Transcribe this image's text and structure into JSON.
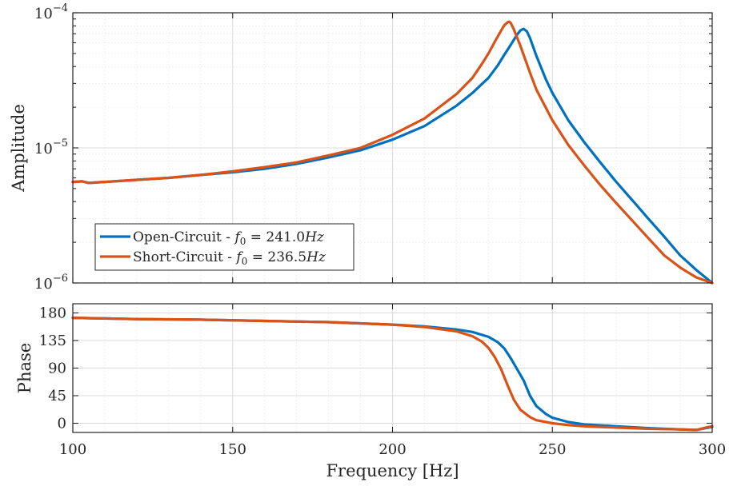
{
  "chart_data": [
    {
      "type": "line",
      "yscale": "log",
      "xlim": [
        100,
        300
      ],
      "ylim": [
        1e-06,
        0.0001
      ],
      "grid": true,
      "ylabel": "Amplitude",
      "xlabel": "",
      "y_ticks": [
        {
          "value": 1e-06,
          "mantissa": "10",
          "exp": "−6"
        },
        {
          "value": 1e-05,
          "mantissa": "10",
          "exp": "−5"
        },
        {
          "value": 0.0001,
          "mantissa": "10",
          "exp": "−4"
        }
      ],
      "legend_position": "lower-left",
      "legend": [
        {
          "prefix": "Open-Circuit - ",
          "var": "f",
          "sub": "0",
          "value": " = 241.0",
          "unit": "Hz",
          "color": "#0072BD"
        },
        {
          "prefix": "Short-Circuit - ",
          "var": "f",
          "sub": "0",
          "value": " = 236.5",
          "unit": "Hz",
          "color": "#D95319"
        }
      ],
      "series": [
        {
          "name": "Open-Circuit - f0 = 241.0Hz",
          "color": "#0072BD",
          "x": [
            100,
            103,
            105,
            110,
            120,
            130,
            140,
            150,
            160,
            170,
            180,
            190,
            200,
            210,
            220,
            225,
            230,
            233,
            235,
            237,
            239,
            240,
            241,
            242,
            243,
            245,
            248,
            250,
            255,
            260,
            265,
            270,
            275,
            280,
            285,
            290,
            295,
            300
          ],
          "y": [
            5.6e-06,
            5.65e-06,
            5.5e-06,
            5.6e-06,
            5.8e-06,
            6e-06,
            6.3e-06,
            6.6e-06,
            7e-06,
            7.6e-06,
            8.5e-06,
            9.6e-06,
            1.15e-05,
            1.45e-05,
            2.05e-05,
            2.55e-05,
            3.3e-05,
            4.1e-05,
            4.9e-05,
            5.8e-05,
            6.9e-05,
            7.4e-05,
            7.6e-05,
            7.3e-05,
            6.5e-05,
            4.8e-05,
            3.2e-05,
            2.55e-05,
            1.6e-05,
            1.1e-05,
            7.8e-06,
            5.6e-06,
            4.1e-06,
            3e-06,
            2.2e-06,
            1.6e-06,
            1.25e-06,
            1e-06
          ]
        },
        {
          "name": "Short-Circuit - f0 = 236.5Hz",
          "color": "#D95319",
          "x": [
            100,
            103,
            105,
            110,
            120,
            130,
            140,
            150,
            160,
            170,
            180,
            190,
            200,
            210,
            220,
            225,
            228,
            230,
            232,
            234,
            235,
            236,
            236.5,
            237,
            238,
            240,
            243,
            245,
            250,
            255,
            260,
            265,
            270,
            275,
            280,
            285,
            290,
            295,
            300
          ],
          "y": [
            5.6e-06,
            5.65e-06,
            5.5e-06,
            5.6e-06,
            5.8e-06,
            6e-06,
            6.3e-06,
            6.7e-06,
            7.2e-06,
            7.8e-06,
            8.8e-06,
            1e-05,
            1.25e-05,
            1.65e-05,
            2.5e-05,
            3.3e-05,
            4.2e-05,
            5e-05,
            6.1e-05,
            7.4e-05,
            8.1e-05,
            8.5e-05,
            8.6e-05,
            8.4e-05,
            7.5e-05,
            5.7e-05,
            3.6e-05,
            2.7e-05,
            1.6e-05,
            1.05e-05,
            7.4e-06,
            5.3e-06,
            3.9e-06,
            2.9e-06,
            2.15e-06,
            1.6e-06,
            1.3e-06,
            1.1e-06,
            1e-06
          ]
        }
      ]
    },
    {
      "type": "line",
      "yscale": "linear",
      "xlim": [
        100,
        300
      ],
      "ylim": [
        -15,
        195
      ],
      "grid": true,
      "ylabel": "Phase",
      "xlabel": "Frequency [Hz]",
      "y_ticks": [
        0,
        45,
        90,
        135,
        180
      ],
      "x_ticks": [
        100,
        150,
        200,
        250,
        300
      ],
      "series": [
        {
          "name": "Open-Circuit - f0 = 241.0Hz",
          "color": "#0072BD",
          "x": [
            100,
            110,
            120,
            140,
            160,
            180,
            200,
            210,
            220,
            225,
            230,
            233,
            235,
            237,
            239,
            241,
            243,
            245,
            248,
            250,
            255,
            260,
            270,
            280,
            290,
            295,
            298,
            300
          ],
          "y": [
            172,
            171,
            170,
            169,
            167,
            165,
            161,
            158,
            153,
            149,
            141,
            132,
            122,
            106,
            88,
            70,
            45,
            28,
            15,
            9,
            2,
            -2,
            -5,
            -8,
            -10,
            -11,
            -8,
            -6
          ]
        },
        {
          "name": "Short-Circuit - f0 = 236.5Hz",
          "color": "#D95319",
          "x": [
            100,
            110,
            120,
            140,
            160,
            180,
            200,
            210,
            220,
            225,
            228,
            230,
            232,
            234,
            236,
            238,
            240,
            243,
            245,
            250,
            255,
            260,
            270,
            280,
            290,
            295,
            298,
            300
          ],
          "y": [
            172,
            171,
            170,
            169,
            167,
            165,
            161,
            157,
            150,
            142,
            133,
            123,
            108,
            88,
            62,
            38,
            22,
            10,
            5,
            0,
            -3,
            -5,
            -7,
            -9,
            -10,
            -11,
            -7,
            -5
          ]
        }
      ]
    }
  ]
}
